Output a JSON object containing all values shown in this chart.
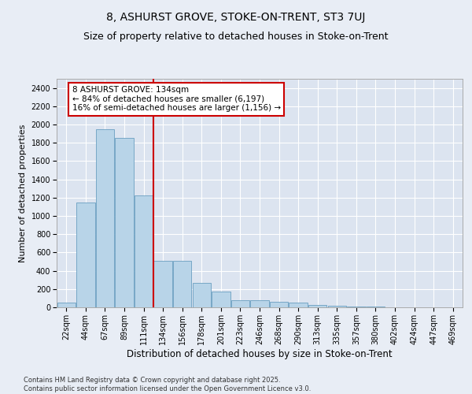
{
  "title1": "8, ASHURST GROVE, STOKE-ON-TRENT, ST3 7UJ",
  "title2": "Size of property relative to detached houses in Stoke-on-Trent",
  "xlabel": "Distribution of detached houses by size in Stoke-on-Trent",
  "ylabel": "Number of detached properties",
  "categories": [
    "22sqm",
    "44sqm",
    "67sqm",
    "89sqm",
    "111sqm",
    "134sqm",
    "156sqm",
    "178sqm",
    "201sqm",
    "223sqm",
    "246sqm",
    "268sqm",
    "290sqm",
    "313sqm",
    "335sqm",
    "357sqm",
    "380sqm",
    "402sqm",
    "424sqm",
    "447sqm",
    "469sqm"
  ],
  "values": [
    50,
    1150,
    1950,
    1850,
    1220,
    510,
    510,
    270,
    170,
    80,
    80,
    60,
    50,
    25,
    15,
    5,
    5,
    2,
    2,
    1,
    1
  ],
  "bar_color": "#b8d4e8",
  "bar_edge_color": "#6a9fc0",
  "vline_x_index": 5,
  "vline_color": "#cc0000",
  "annotation_text": "8 ASHURST GROVE: 134sqm\n← 84% of detached houses are smaller (6,197)\n16% of semi-detached houses are larger (1,156) →",
  "annotation_box_color": "#ffffff",
  "annotation_box_edge": "#cc0000",
  "ylim": [
    0,
    2500
  ],
  "yticks": [
    0,
    200,
    400,
    600,
    800,
    1000,
    1200,
    1400,
    1600,
    1800,
    2000,
    2200,
    2400
  ],
  "bg_color": "#e8edf5",
  "plot_bg_color": "#dce4f0",
  "footnote": "Contains HM Land Registry data © Crown copyright and database right 2025.\nContains public sector information licensed under the Open Government Licence v3.0.",
  "title1_fontsize": 10,
  "title2_fontsize": 9,
  "xlabel_fontsize": 8.5,
  "ylabel_fontsize": 8,
  "tick_fontsize": 7,
  "annot_fontsize": 7.5,
  "footnote_fontsize": 6
}
